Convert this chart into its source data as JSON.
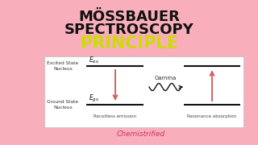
{
  "bg_color": "#F9AEBB",
  "title1": "MÖSSBAUER",
  "title2": "SPECTROSCOPY",
  "title3": "PRINCIPLE",
  "title_color": "#111111",
  "principle_color": "#CCDD00",
  "watermark": "Chemistrified",
  "box_bg": "#FFFFFF",
  "excited_label": "Excited State\nNucleus",
  "ground_label": "Ground State\nNucleus",
  "gamma_label": "Gamma",
  "recoilless_label": "Recoilless emission",
  "resonance_label": "Resonance absorption",
  "arrow_color": "#D96060",
  "line_color": "#111111"
}
